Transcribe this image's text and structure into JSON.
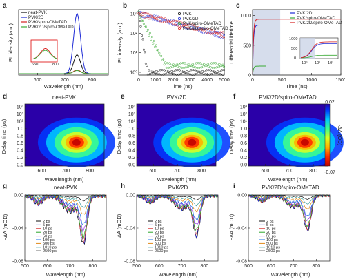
{
  "panels": {
    "a": {
      "letter": "a",
      "chart": {
        "type": "line",
        "xlabel": "Wavelength (nm)",
        "ylabel": "PL idensity (a.u.)",
        "xlim": [
          530,
          860
        ],
        "xticks": [
          600,
          700,
          800
        ],
        "series": [
          {
            "name": "neat-PVK",
            "color": "#111111",
            "peak_nm": 745,
            "height": 0.3
          },
          {
            "name": "PVK/2D",
            "color": "#1f2bd6",
            "peak_nm": 745,
            "height": 0.96
          },
          {
            "name": "PVK/spiro-OMeTAD",
            "color": "#d62020",
            "peak_nm": 745,
            "height": 0.06
          },
          {
            "name": "PVK/2D/spiro-OMeTAD",
            "color": "#3aaa35",
            "peak_nm": 745,
            "height": 0.05
          }
        ],
        "inset": {
          "xtick_labels": [
            "650",
            "800"
          ]
        }
      }
    },
    "b": {
      "letter": "b",
      "chart": {
        "type": "scatter",
        "xlabel": "Time (ns)",
        "ylabel": "PL intensity (a.u.)",
        "xlim": [
          0,
          5000
        ],
        "xticks": [
          0,
          1000,
          2000,
          3000,
          4000,
          5000
        ],
        "ylog": true,
        "ylim_exp": [
          0,
          3
        ],
        "series": [
          {
            "name": "PVK",
            "color": "#111111",
            "tau": 75,
            "floor_exp": 0.0
          },
          {
            "name": "PVK/2D",
            "color": "#1f2bd6",
            "tau": 1900,
            "floor_exp": 0.0
          },
          {
            "name": "PVK/spiro-OMeTAD",
            "color": "#3aaa35",
            "tau": 260,
            "floor_exp": 0.35
          },
          {
            "name": "PVK/2D/spiro-OMeTAD",
            "color": "#d62020",
            "tau": 2000,
            "floor_exp": 0.0
          }
        ]
      }
    },
    "c": {
      "letter": "c",
      "chart": {
        "type": "line",
        "xlabel": "Time (ns)",
        "ylabel": "Differential lifetime",
        "xlim": [
          0,
          1500
        ],
        "ylim": [
          0,
          1100
        ],
        "xticks": [
          0,
          500,
          1000,
          1500
        ],
        "yticks": [
          0,
          500,
          1000
        ],
        "shade_until": 470,
        "series": [
          {
            "name": "PVK/2D",
            "color": "#1f2bd6",
            "plateau": 840
          },
          {
            "name": "PVK/spiro-OMeTAD",
            "color": "#3aaa35",
            "plateau": 150
          },
          {
            "name": "PVK/2D/spiro-OMeTAD",
            "color": "#d62020",
            "plateau": 940
          }
        ],
        "inset": {
          "ytick_labels": [
            "0",
            "500",
            "1000"
          ],
          "xtick_labels": [
            "10⁰",
            "10¹",
            "10²"
          ]
        }
      }
    },
    "maps": {
      "xlabel": "Wavelength (nm)",
      "ylabel": "Delay time (ps)",
      "xticks": [
        600,
        700,
        800
      ],
      "xlim": [
        530,
        860
      ],
      "ytick_labels": [
        "10³",
        "10²",
        "10¹",
        "1.0",
        "0.8",
        "0.6",
        "0.4",
        "0.2",
        "0.0"
      ],
      "colorbar_label": "-ΔA (OD)",
      "colorbar_max": "0.02",
      "colorbar_min": "-0.07",
      "colors": [
        "#2a00a8",
        "#0038ff",
        "#00c8ff",
        "#3cff8c",
        "#dcff20",
        "#ffb000",
        "#ff2800",
        "#c00000"
      ],
      "items": [
        {
          "letter": "d",
          "title": "neat-PVK",
          "center_nm": 745
        },
        {
          "letter": "e",
          "title": "PVK/2D",
          "center_nm": 760
        },
        {
          "letter": "f",
          "title": "PVK/2D/spiro-OMeTAD",
          "center_nm": 765
        }
      ]
    },
    "spectra": {
      "xlabel": "Wavelength (nm)",
      "ylabel": "−ΔA (mOD)",
      "xticks": [
        500,
        600,
        700,
        800
      ],
      "xlim": [
        500,
        860
      ],
      "ylim": [
        -0.08,
        0.0
      ],
      "ytick_labels": [
        "0.00",
        "-0.04",
        "-0.08"
      ],
      "delays": [
        {
          "label": "2 ps",
          "color": "#111111"
        },
        {
          "label": "5 ps",
          "color": "#2230d0"
        },
        {
          "label": "10 ps",
          "color": "#d63030"
        },
        {
          "label": "20 ps",
          "color": "#2aa52a"
        },
        {
          "label": "50 ps",
          "color": "#8a2be2"
        },
        {
          "label": "100 ps",
          "color": "#1a6fe0"
        },
        {
          "label": "500 ps",
          "color": "#e08a1a"
        },
        {
          "label": "1010 ps",
          "color": "#3aa0a0"
        },
        {
          "label": "2500 ps",
          "color": "#111111"
        }
      ],
      "items": [
        {
          "letter": "g",
          "title": "neat-PVK",
          "peak_nm": 760,
          "max_depth": 0.056
        },
        {
          "letter": "h",
          "title": "PVK/2D",
          "peak_nm": 765,
          "max_depth": 0.048
        },
        {
          "letter": "i",
          "title": "PVK/2D/spiro-OMeTAD",
          "peak_nm": 762,
          "max_depth": 0.041
        }
      ]
    }
  }
}
